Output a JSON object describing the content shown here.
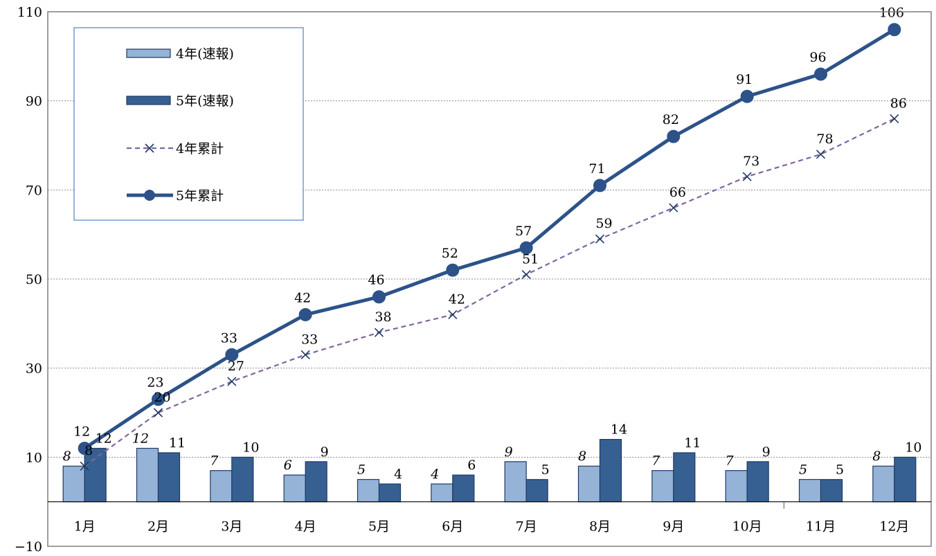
{
  "chart_data": {
    "type": "bar",
    "categories": [
      "1月",
      "2月",
      "3月",
      "4月",
      "5月",
      "6月",
      "7月",
      "8月",
      "9月",
      "10月",
      "11月",
      "12月"
    ],
    "series": [
      {
        "name": "4年(速報)",
        "type": "bar",
        "color": "#95b3d7",
        "values": [
          8,
          12,
          7,
          6,
          5,
          4,
          9,
          8,
          7,
          7,
          5,
          8
        ]
      },
      {
        "name": "5年(速報)",
        "type": "bar",
        "color": "#376092",
        "values": [
          12,
          11,
          10,
          9,
          4,
          6,
          5,
          14,
          11,
          9,
          5,
          10
        ]
      },
      {
        "name": "4年累計",
        "type": "line",
        "style": "dashed",
        "marker": "x",
        "color": "#8064a2",
        "values": [
          8,
          20,
          27,
          33,
          38,
          42,
          51,
          59,
          66,
          73,
          78,
          86
        ]
      },
      {
        "name": "5年累計",
        "type": "line",
        "style": "solid",
        "marker": "circle",
        "color": "#2c5289",
        "values": [
          12,
          23,
          33,
          42,
          46,
          52,
          57,
          71,
          82,
          91,
          96,
          106
        ]
      }
    ],
    "ylim": [
      -10,
      110
    ],
    "yticks": [
      "-10",
      "10",
      "30",
      "50",
      "70",
      "90",
      "110"
    ],
    "grid": true,
    "legend_position": "top-left"
  }
}
